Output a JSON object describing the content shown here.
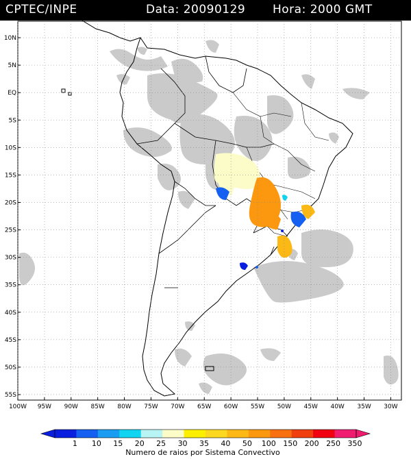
{
  "header": {
    "agency": "CPTEC/INPE",
    "date_label": "Data: 20090129",
    "time_label": "Hora: 2000 GMT"
  },
  "map": {
    "lon_range": [
      -100,
      -28
    ],
    "lat_range": [
      -56,
      13
    ],
    "lat_ticks": [
      "10N",
      "5N",
      "EQ",
      "5S",
      "10S",
      "15S",
      "20S",
      "25S",
      "30S",
      "35S",
      "40S",
      "45S",
      "50S",
      "55S"
    ],
    "lon_ticks": [
      "100W",
      "95W",
      "90W",
      "85W",
      "80W",
      "75W",
      "70W",
      "65W",
      "60W",
      "55W",
      "50W",
      "45W",
      "40W",
      "35W",
      "30W"
    ],
    "grid": "dotted"
  },
  "colorbar": {
    "labels": [
      "1",
      "10",
      "15",
      "20",
      "25",
      "30",
      "35",
      "40",
      "50",
      "100",
      "150",
      "200",
      "250",
      "350"
    ],
    "colors": [
      "#0a1ee0",
      "#1560f0",
      "#1a9cf0",
      "#10d4f0",
      "#b8f4f4",
      "#fcfcc8",
      "#fcf000",
      "#fcd820",
      "#fcb814",
      "#fc9810",
      "#f87010",
      "#f04010",
      "#f00010",
      "#f01c70"
    ],
    "title": "Numero de raios por Sistema Convectivo"
  },
  "colors": {
    "cloud": "#c8c8c8",
    "coast": "#000000",
    "grid": "#888888"
  }
}
